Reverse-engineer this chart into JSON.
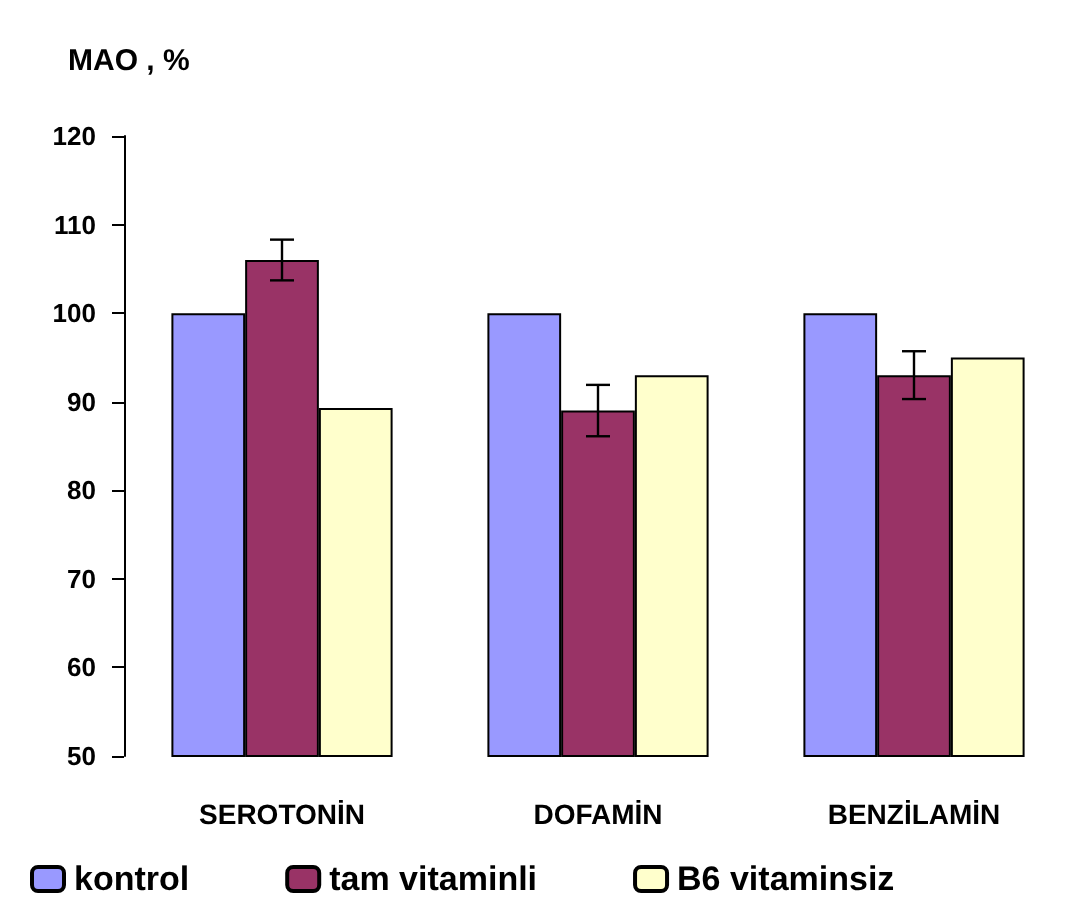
{
  "chart_data": {
    "type": "bar",
    "ylabel": "MAO , %",
    "categories": [
      "SEROTONİN",
      "DOFAMİN",
      "BENZİLAMİN"
    ],
    "series": [
      {
        "name": "kontrol",
        "color": "#9999ff",
        "values": [
          100,
          100,
          100
        ]
      },
      {
        "name": "tam vitaminli",
        "color": "#993366",
        "values": [
          106,
          89,
          93
        ],
        "errors": [
          2.3,
          2.9,
          2.7
        ]
      },
      {
        "name": "B6 vitaminsiz",
        "color": "#ffffcc",
        "values": [
          89.3,
          93,
          95
        ]
      }
    ],
    "ylim": [
      50,
      120
    ],
    "yticks": [
      50,
      60,
      70,
      80,
      90,
      100,
      110,
      120
    ],
    "grid": false,
    "legend": "bottom"
  }
}
